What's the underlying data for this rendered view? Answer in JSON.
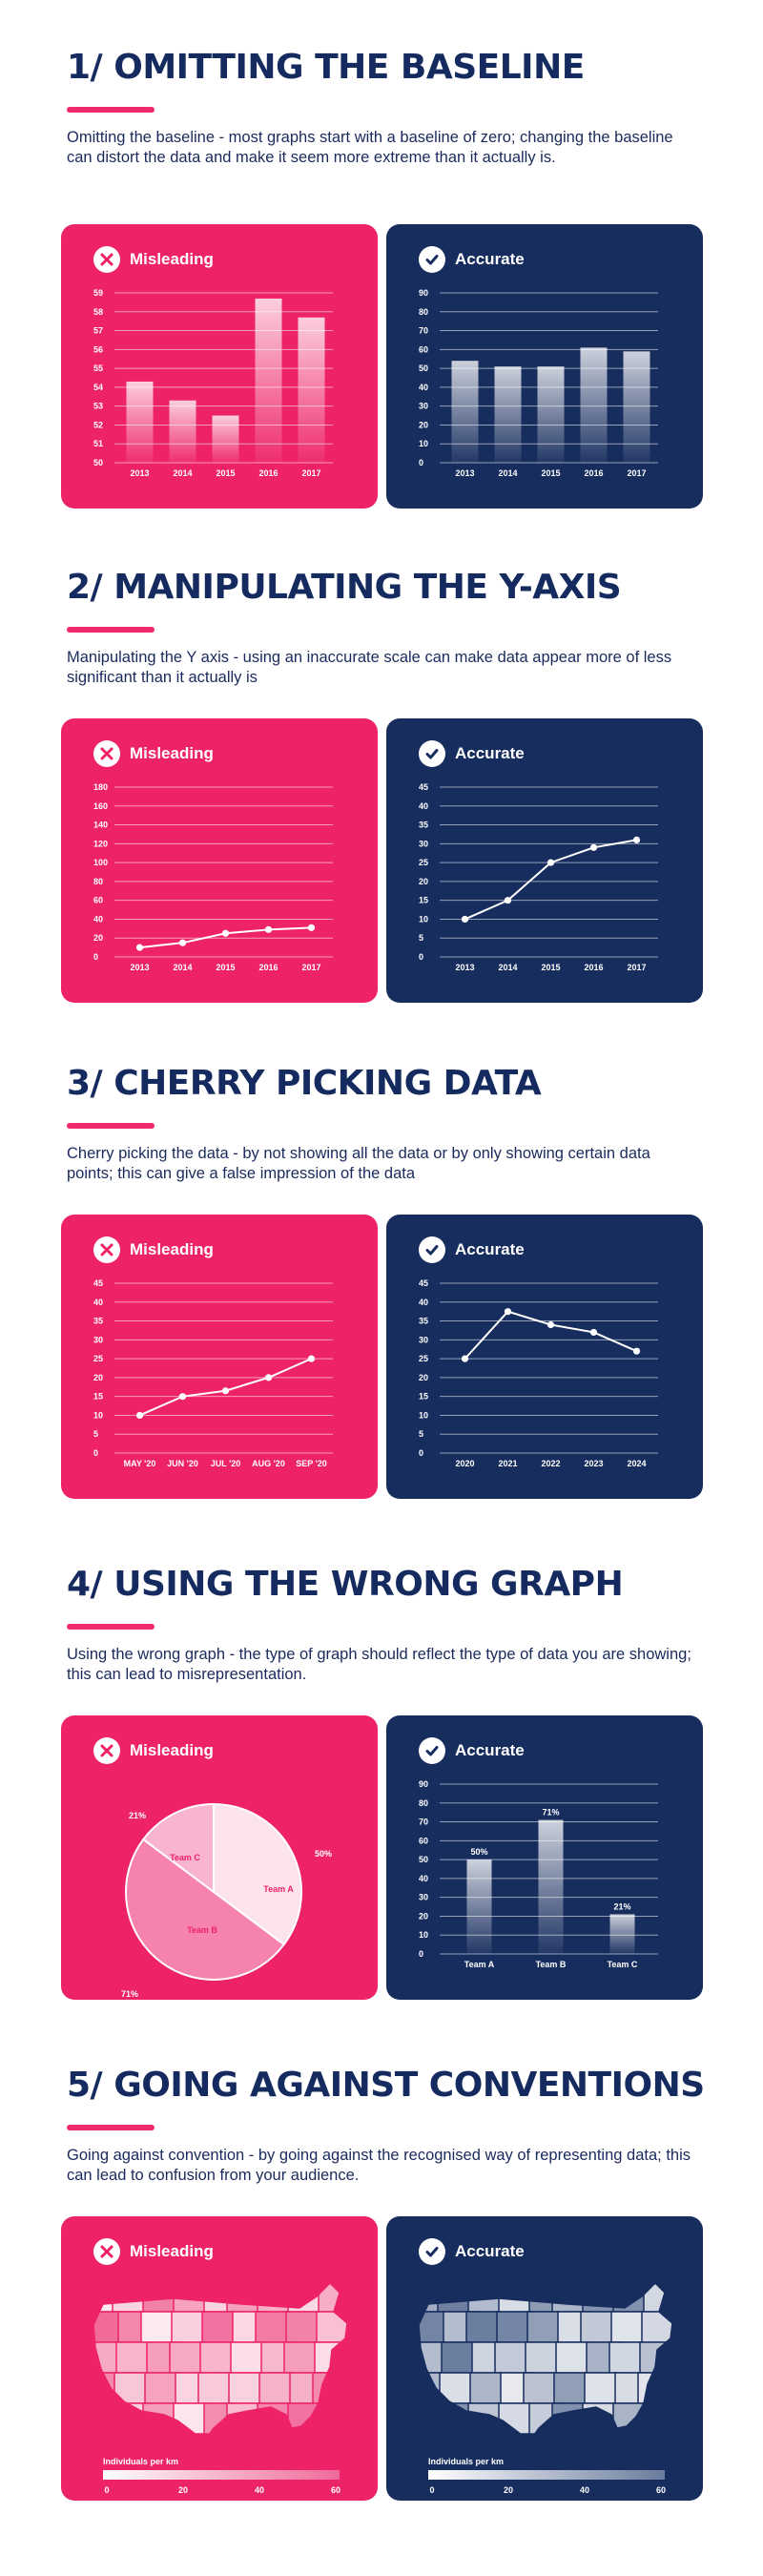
{
  "colors": {
    "pink": "#ee2268",
    "navy": "#172d5e",
    "title": "#152b5f",
    "accent_rule": "#ef2a6b"
  },
  "labels": {
    "misleading": "Misleading",
    "accurate": "Accurate"
  },
  "sections": [
    {
      "title": "1/ OMITTING THE BASELINE",
      "description": "Omitting the baseline - most graphs start with a baseline of zero; changing the baseline can distort the data and make it seem more extreme than it actually is."
    },
    {
      "title": "2/ MANIPULATING THE Y-AXIS",
      "description": "Manipulating the Y axis - using an inaccurate scale can make data appear more of less significant than it actually is"
    },
    {
      "title": "3/ CHERRY PICKING DATA",
      "description": "Cherry picking the data - by not showing all the data or by only showing certain data points; this can give a false impression of the data"
    },
    {
      "title": "4/ USING THE WRONG GRAPH",
      "description": "Using the wrong graph - the type of graph should reflect the type of data you are showing; this can lead to misrepresentation."
    },
    {
      "title": "5/ GOING AGAINST CONVENTIONS",
      "description": "Going against convention - by going against the recognised way of representing data; this can lead to confusion from your audience."
    }
  ],
  "chart_data": [
    {
      "type": "bar",
      "panel": "Misleading",
      "categories": [
        "2013",
        "2014",
        "2015",
        "2016",
        "2017"
      ],
      "values": [
        54.3,
        53.3,
        52.5,
        58.7,
        57.7
      ],
      "yticks": [
        50,
        51,
        52,
        53,
        54,
        55,
        56,
        57,
        58,
        59
      ],
      "ylim": [
        50,
        59
      ],
      "grid": true
    },
    {
      "type": "bar",
      "panel": "Accurate",
      "categories": [
        "2013",
        "2014",
        "2015",
        "2016",
        "2017"
      ],
      "values": [
        54,
        51,
        51,
        61,
        59
      ],
      "yticks": [
        0,
        10,
        20,
        30,
        40,
        50,
        60,
        70,
        80,
        90
      ],
      "ylim": [
        0,
        90
      ],
      "grid": true
    },
    {
      "type": "line",
      "panel": "Misleading",
      "categories": [
        "2013",
        "2014",
        "2015",
        "2016",
        "2017"
      ],
      "values": [
        10,
        15,
        25,
        29,
        31
      ],
      "yticks": [
        0,
        20,
        40,
        60,
        80,
        100,
        120,
        140,
        160,
        180
      ],
      "ylim": [
        0,
        180
      ],
      "grid": true
    },
    {
      "type": "line",
      "panel": "Accurate",
      "categories": [
        "2013",
        "2014",
        "2015",
        "2016",
        "2017"
      ],
      "values": [
        10,
        15,
        25,
        29,
        31
      ],
      "yticks": [
        0,
        5,
        10,
        15,
        20,
        25,
        30,
        35,
        40,
        45
      ],
      "ylim": [
        0,
        45
      ],
      "grid": true
    },
    {
      "type": "line",
      "panel": "Misleading",
      "categories": [
        "MAY '20",
        "JUN '20",
        "JUL '20",
        "AUG '20",
        "SEP '20"
      ],
      "values": [
        10,
        15,
        16.5,
        20,
        25
      ],
      "yticks": [
        0,
        5,
        10,
        15,
        20,
        25,
        30,
        35,
        40,
        45
      ],
      "ylim": [
        0,
        45
      ],
      "grid": true
    },
    {
      "type": "line",
      "panel": "Accurate",
      "categories": [
        "2020",
        "2021",
        "2022",
        "2023",
        "2024"
      ],
      "values": [
        25,
        37.5,
        34,
        32,
        27
      ],
      "yticks": [
        0,
        5,
        10,
        15,
        20,
        25,
        30,
        35,
        40,
        45
      ],
      "ylim": [
        0,
        45
      ],
      "grid": true
    },
    {
      "type": "pie",
      "panel": "Misleading",
      "slices": [
        {
          "name": "Team A",
          "value": 50,
          "label": "50%",
          "color": "#fde3ee"
        },
        {
          "name": "Team B",
          "value": 71,
          "label": "71%",
          "color": "#f583ad"
        },
        {
          "name": "Team C",
          "value": 21,
          "label": "21%",
          "color": "#f9b4cf"
        }
      ]
    },
    {
      "type": "bar",
      "panel": "Accurate",
      "categories": [
        "Team A",
        "Team B",
        "Team C"
      ],
      "values": [
        50,
        71,
        21
      ],
      "data_labels": [
        "50%",
        "71%",
        "21%"
      ],
      "yticks": [
        0,
        10,
        20,
        30,
        40,
        50,
        60,
        70,
        80,
        90
      ],
      "ylim": [
        0,
        90
      ],
      "grid": true
    }
  ],
  "maps": [
    {
      "panel": "Misleading",
      "legend_title": "Individuals per km",
      "legend_ticks": [
        "0",
        "20",
        "40",
        "60"
      ],
      "gradient": [
        "#ffffff",
        "#f06a9a"
      ],
      "background": "#ee2268",
      "border": "#ee2268"
    },
    {
      "panel": "Accurate",
      "legend_title": "Individuals per km",
      "legend_ticks": [
        "0",
        "20",
        "40",
        "60"
      ],
      "gradient": [
        "#ffffff",
        "#6a7c9e"
      ],
      "background": "#172d5e",
      "border": "#172d5e"
    }
  ]
}
